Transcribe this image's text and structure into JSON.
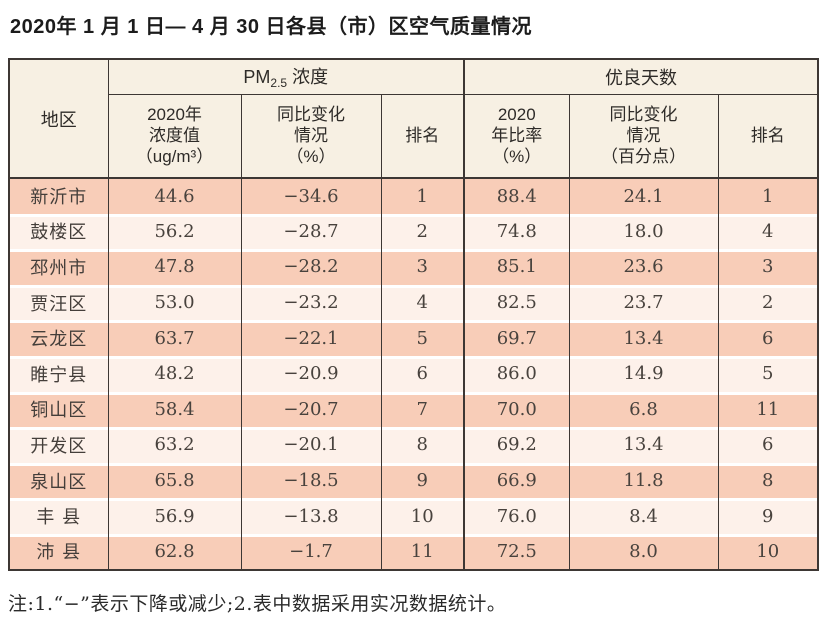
{
  "page": {
    "title": "2020年 1 月 1 日— 4 月 30 日各县（市）区空气质量情况",
    "footnote": "注:1.“−”表示下降或减少;2.表中数据采用实况数据统计。"
  },
  "colors": {
    "row_odd_bg": "#f8cdb8",
    "row_even_bg": "#fdf1ea",
    "header_bg": "#f7f0e3",
    "border": "#3d3734"
  },
  "table": {
    "region_header": "地区",
    "pm_group": {
      "prefix": "PM",
      "sub": "2.5",
      "suffix": " 浓度"
    },
    "good_group": "优良天数",
    "subheaders": {
      "pm_value": "2020年\n浓度值\n（ug/m³）",
      "pm_change": "同比变化\n情况\n（%）",
      "pm_rank": "排名",
      "good_ratio": "2020\n年比率\n（%）",
      "good_change": "同比变化\n情况\n（百分点）",
      "good_rank": "排名"
    },
    "rows": [
      {
        "region": "新沂市",
        "pm_value": "44.6",
        "pm_change": "−34.6",
        "pm_rank": "1",
        "good_ratio": "88.4",
        "good_change": "24.1",
        "good_rank": "1"
      },
      {
        "region": "鼓楼区",
        "pm_value": "56.2",
        "pm_change": "−28.7",
        "pm_rank": "2",
        "good_ratio": "74.8",
        "good_change": "18.0",
        "good_rank": "4"
      },
      {
        "region": "邳州市",
        "pm_value": "47.8",
        "pm_change": "−28.2",
        "pm_rank": "3",
        "good_ratio": "85.1",
        "good_change": "23.6",
        "good_rank": "3"
      },
      {
        "region": "贾汪区",
        "pm_value": "53.0",
        "pm_change": "−23.2",
        "pm_rank": "4",
        "good_ratio": "82.5",
        "good_change": "23.7",
        "good_rank": "2"
      },
      {
        "region": "云龙区",
        "pm_value": "63.7",
        "pm_change": "−22.1",
        "pm_rank": "5",
        "good_ratio": "69.7",
        "good_change": "13.4",
        "good_rank": "6"
      },
      {
        "region": "睢宁县",
        "pm_value": "48.2",
        "pm_change": "−20.9",
        "pm_rank": "6",
        "good_ratio": "86.0",
        "good_change": "14.9",
        "good_rank": "5"
      },
      {
        "region": "铜山区",
        "pm_value": "58.4",
        "pm_change": "−20.7",
        "pm_rank": "7",
        "good_ratio": "70.0",
        "good_change": "6.8",
        "good_rank": "11"
      },
      {
        "region": "开发区",
        "pm_value": "63.2",
        "pm_change": "−20.1",
        "pm_rank": "8",
        "good_ratio": "69.2",
        "good_change": "13.4",
        "good_rank": "6"
      },
      {
        "region": "泉山区",
        "pm_value": "65.8",
        "pm_change": "−18.5",
        "pm_rank": "9",
        "good_ratio": "66.9",
        "good_change": "11.8",
        "good_rank": "8"
      },
      {
        "region": "丰 县",
        "pm_value": "56.9",
        "pm_change": "−13.8",
        "pm_rank": "10",
        "good_ratio": "76.0",
        "good_change": "8.4",
        "good_rank": "9"
      },
      {
        "region": "沛 县",
        "pm_value": "62.8",
        "pm_change": "−1.7",
        "pm_rank": "11",
        "good_ratio": "72.5",
        "good_change": "8.0",
        "good_rank": "10"
      }
    ]
  }
}
